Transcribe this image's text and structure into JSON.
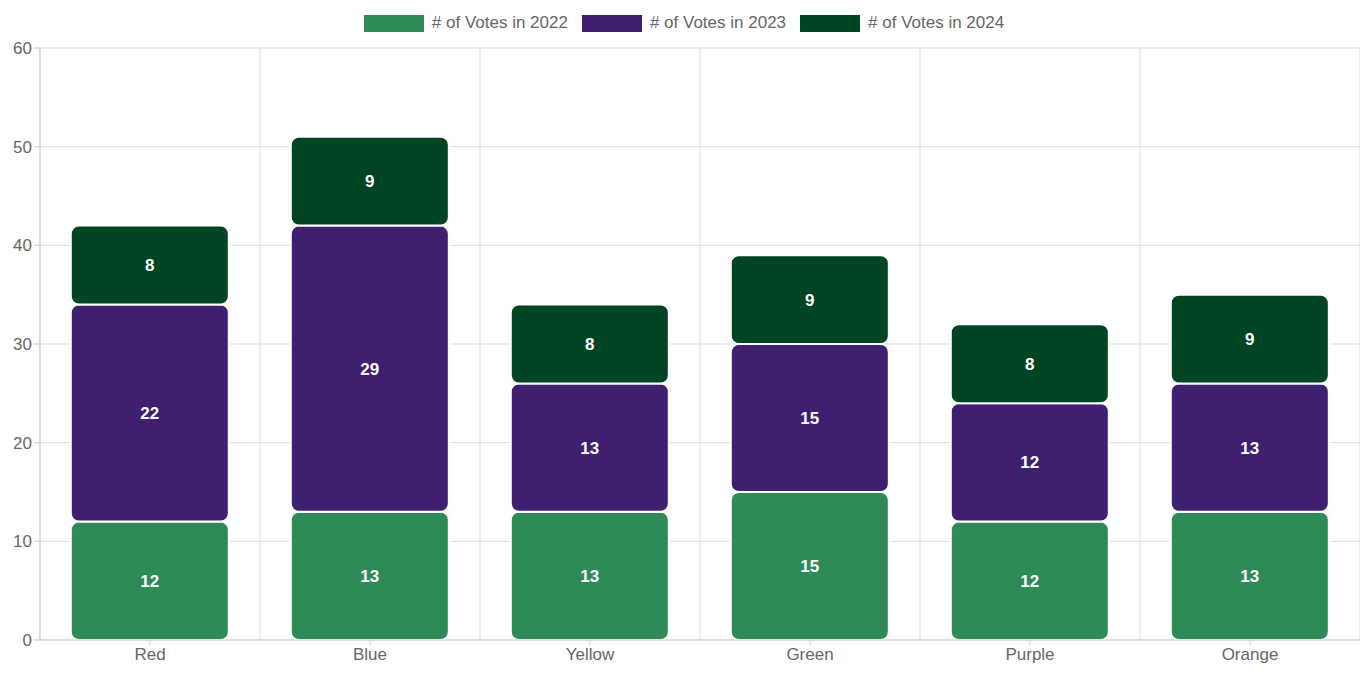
{
  "chart_data": {
    "type": "bar",
    "categories": [
      "Red",
      "Blue",
      "Yellow",
      "Green",
      "Purple",
      "Orange"
    ],
    "series": [
      {
        "name": "# of Votes in 2022",
        "color": "#2e8b57",
        "values": [
          12,
          13,
          13,
          15,
          12,
          13
        ]
      },
      {
        "name": "# of Votes in 2023",
        "color": "#3f1f6f",
        "values": [
          22,
          29,
          13,
          15,
          12,
          13
        ]
      },
      {
        "name": "# of Votes in 2024",
        "color": "#004523",
        "values": [
          8,
          9,
          8,
          9,
          8,
          9
        ]
      }
    ],
    "ylim": [
      0,
      60
    ],
    "yticks": [
      0,
      10,
      20,
      30,
      40,
      50,
      60
    ],
    "grid": true,
    "stacked": true,
    "data_labels": true,
    "legend": "top"
  }
}
